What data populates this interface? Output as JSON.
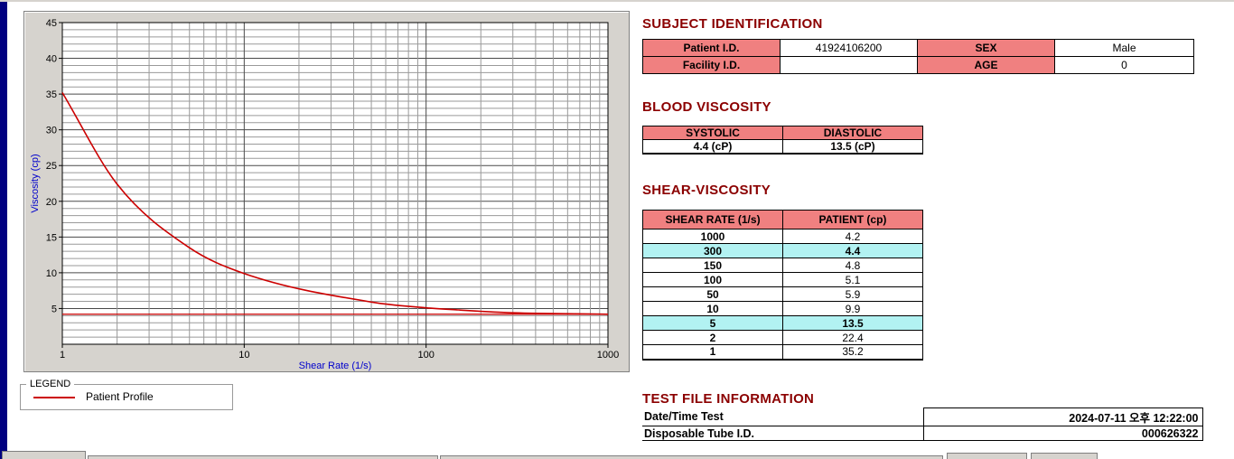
{
  "window": {
    "left_strip_color": "#000080",
    "panel_gray": "#d6d3ce"
  },
  "colors": {
    "heading": "#8b0000",
    "table_header_bg": "#f08080",
    "row_highlight": "#b2f2f2",
    "accent_red": "#cc0000",
    "axis_label_blue": "#0000cc"
  },
  "chart_data": {
    "type": "line",
    "title": "",
    "xlabel": "Shear Rate (1/s)",
    "ylabel": "Viscosity (cp)",
    "x_scale": "log",
    "xlim": [
      1,
      1000
    ],
    "ylim": [
      0,
      45
    ],
    "x_ticks": [
      1,
      10,
      100,
      1000
    ],
    "y_ticks": [
      5,
      10,
      15,
      20,
      25,
      30,
      35,
      40,
      45
    ],
    "grid": "on",
    "legend_position": "below-left",
    "series": [
      {
        "name": "Patient Profile",
        "color": "#cc0000",
        "x": [
          1,
          2,
          5,
          10,
          50,
          100,
          150,
          300,
          1000
        ],
        "y": [
          35.2,
          22.4,
          13.5,
          9.9,
          5.9,
          5.1,
          4.8,
          4.4,
          4.2
        ]
      }
    ],
    "baseline": {
      "value": 4.2,
      "color": "#cc0000"
    }
  },
  "legend": {
    "box_label": "LEGEND",
    "entries": [
      {
        "label": "Patient Profile",
        "color": "#cc0000"
      }
    ]
  },
  "subject_identification": {
    "heading": "SUBJECT IDENTIFICATION",
    "patient_id_label": "Patient I.D.",
    "patient_id_value": "41924106200",
    "sex_label": "SEX",
    "sex_value": "Male",
    "facility_id_label": "Facility I.D.",
    "facility_id_value": "",
    "age_label": "AGE",
    "age_value": "0"
  },
  "blood_viscosity": {
    "heading": "BLOOD VISCOSITY",
    "systolic_label": "SYSTOLIC",
    "diastolic_label": "DIASTOLIC",
    "systolic_value": "4.4 (cP)",
    "diastolic_value": "13.5 (cP)"
  },
  "shear_viscosity": {
    "heading": "SHEAR-VISCOSITY",
    "columns": [
      "SHEAR RATE (1/s)",
      "PATIENT (cp)"
    ],
    "rows": [
      {
        "shear_rate": "1000",
        "patient": "4.2",
        "highlight": false
      },
      {
        "shear_rate": "300",
        "patient": "4.4",
        "highlight": true
      },
      {
        "shear_rate": "150",
        "patient": "4.8",
        "highlight": false
      },
      {
        "shear_rate": "100",
        "patient": "5.1",
        "highlight": false
      },
      {
        "shear_rate": "50",
        "patient": "5.9",
        "highlight": false
      },
      {
        "shear_rate": "10",
        "patient": "9.9",
        "highlight": false
      },
      {
        "shear_rate": "5",
        "patient": "13.5",
        "highlight": true
      },
      {
        "shear_rate": "2",
        "patient": "22.4",
        "highlight": false
      },
      {
        "shear_rate": "1",
        "patient": "35.2",
        "highlight": false
      }
    ]
  },
  "test_file_information": {
    "heading": "TEST FILE INFORMATION",
    "rows": [
      {
        "label": "Date/Time Test",
        "value": "2024-07-11  오후 12:22:00"
      },
      {
        "label": "Disposable Tube I.D.",
        "value": "000626322"
      }
    ]
  }
}
